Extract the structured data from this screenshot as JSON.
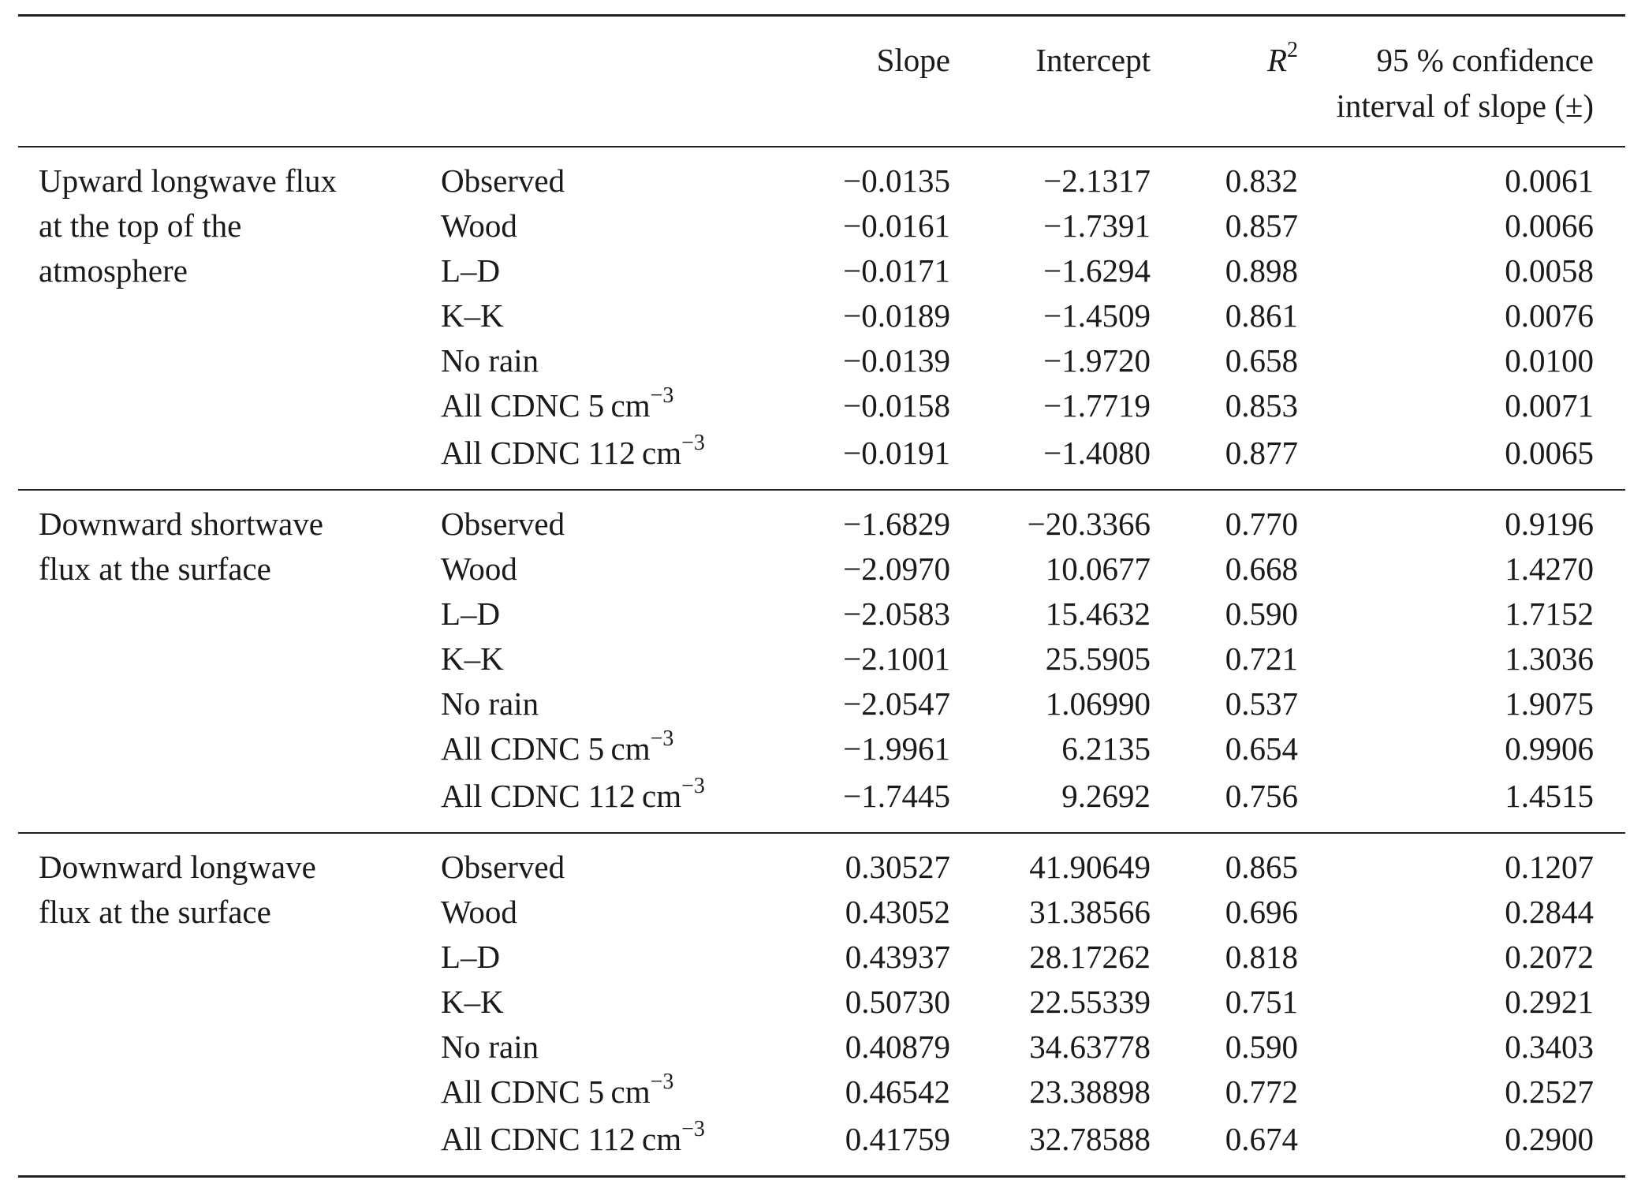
{
  "table": {
    "headers": {
      "slope": "Slope",
      "intercept": "Intercept",
      "r2_base": "R",
      "r2_sup": "2",
      "ci_line1": "95 % confidence",
      "ci_line2": "interval of slope (±)"
    },
    "unit_base": "cm",
    "unit_sup": "−3",
    "groups": [
      {
        "title_lines": [
          "Upward longwave flux",
          "at the top of the",
          "atmosphere"
        ],
        "rows": [
          {
            "case": "Observed",
            "slope": "−0.0135",
            "intercept": "−2.1317",
            "r2": "0.832",
            "ci": "0.0061"
          },
          {
            "case": "Wood",
            "slope": "−0.0161",
            "intercept": "−1.7391",
            "r2": "0.857",
            "ci": "0.0066"
          },
          {
            "case": "L–D",
            "slope": "−0.0171",
            "intercept": "−1.6294",
            "r2": "0.898",
            "ci": "0.0058"
          },
          {
            "case": "K–K",
            "slope": "−0.0189",
            "intercept": "−1.4509",
            "r2": "0.861",
            "ci": "0.0076"
          },
          {
            "case": "No rain",
            "slope": "−0.0139",
            "intercept": "−1.9720",
            "r2": "0.658",
            "ci": "0.0100"
          },
          {
            "case": "All CDNC 5",
            "slope": "−0.0158",
            "intercept": "−1.7719",
            "r2": "0.853",
            "ci": "0.0071"
          },
          {
            "case": "All CDNC 112",
            "slope": "−0.0191",
            "intercept": "−1.4080",
            "r2": "0.877",
            "ci": "0.0065"
          }
        ]
      },
      {
        "title_lines": [
          "Downward shortwave",
          "flux at the surface"
        ],
        "rows": [
          {
            "case": "Observed",
            "slope": "−1.6829",
            "intercept": "−20.3366",
            "r2": "0.770",
            "ci": "0.9196"
          },
          {
            "case": "Wood",
            "slope": "−2.0970",
            "intercept": "10.0677",
            "r2": "0.668",
            "ci": "1.4270"
          },
          {
            "case": "L–D",
            "slope": "−2.0583",
            "intercept": "15.4632",
            "r2": "0.590",
            "ci": "1.7152"
          },
          {
            "case": "K–K",
            "slope": "−2.1001",
            "intercept": "25.5905",
            "r2": "0.721",
            "ci": "1.3036"
          },
          {
            "case": "No rain",
            "slope": "−2.0547",
            "intercept": "1.06990",
            "r2": "0.537",
            "ci": "1.9075"
          },
          {
            "case": "All CDNC 5",
            "slope": "−1.9961",
            "intercept": "6.2135",
            "r2": "0.654",
            "ci": "0.9906"
          },
          {
            "case": "All CDNC 112",
            "slope": "−1.7445",
            "intercept": "9.2692",
            "r2": "0.756",
            "ci": "1.4515"
          }
        ]
      },
      {
        "title_lines": [
          "Downward longwave",
          "flux at the surface"
        ],
        "rows": [
          {
            "case": "Observed",
            "slope": "0.30527",
            "intercept": "41.90649",
            "r2": "0.865",
            "ci": "0.1207"
          },
          {
            "case": "Wood",
            "slope": "0.43052",
            "intercept": "31.38566",
            "r2": "0.696",
            "ci": "0.2844"
          },
          {
            "case": "L–D",
            "slope": "0.43937",
            "intercept": "28.17262",
            "r2": "0.818",
            "ci": "0.2072"
          },
          {
            "case": "K–K",
            "slope": "0.50730",
            "intercept": "22.55339",
            "r2": "0.751",
            "ci": "0.2921"
          },
          {
            "case": "No rain",
            "slope": "0.40879",
            "intercept": "34.63778",
            "r2": "0.590",
            "ci": "0.3403"
          },
          {
            "case": "All CDNC 5",
            "slope": "0.46542",
            "intercept": "23.38898",
            "r2": "0.772",
            "ci": "0.2527"
          },
          {
            "case": "All CDNC 112",
            "slope": "0.41759",
            "intercept": "32.78588",
            "r2": "0.674",
            "ci": "0.2900"
          }
        ]
      }
    ]
  }
}
